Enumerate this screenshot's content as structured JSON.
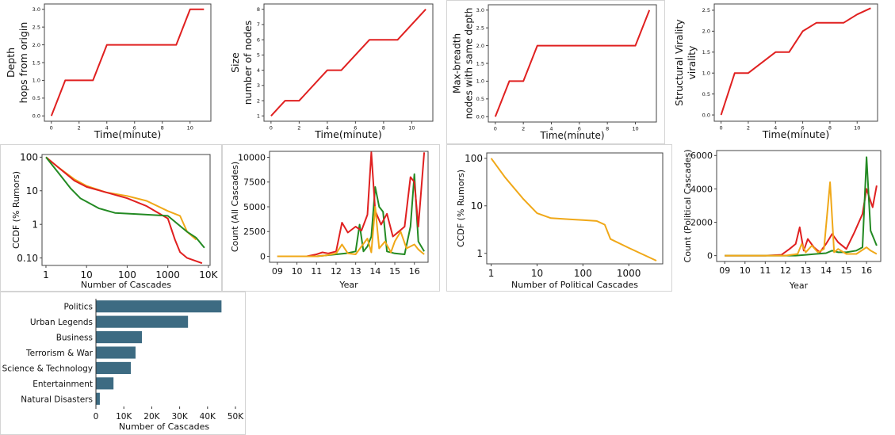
{
  "charts": [
    {
      "key": "depth",
      "type": "line",
      "ylabel_lines": [
        "Depth",
        "hops from origin"
      ],
      "xlabel": "Time(minute)",
      "xlim": [
        -0.5,
        11.5
      ],
      "ylim": [
        -0.15,
        3.15
      ],
      "xticks": [
        0,
        2,
        4,
        6,
        8,
        10
      ],
      "yticks": [
        0.0,
        0.5,
        1.0,
        1.5,
        2.0,
        2.5,
        3.0
      ],
      "ytick_labels": [
        "0.0",
        "0.5",
        "1.0",
        "1.5",
        "2.0",
        "2.5",
        "3.0"
      ],
      "series": [
        {
          "color": "#e02020",
          "x": [
            0,
            1,
            3,
            4,
            9,
            10,
            11
          ],
          "y": [
            0,
            1,
            1,
            2,
            2,
            3,
            3
          ]
        }
      ]
    },
    {
      "key": "size",
      "type": "line",
      "ylabel_lines": [
        "Size",
        "number of nodes"
      ],
      "xlabel": "Time(minute)",
      "xlim": [
        -0.5,
        11.5
      ],
      "ylim": [
        0.65,
        8.35
      ],
      "xticks": [
        0,
        2,
        4,
        6,
        8,
        10
      ],
      "yticks": [
        1,
        2,
        3,
        4,
        5,
        6,
        7,
        8
      ],
      "ytick_labels": [
        "1",
        "2",
        "3",
        "4",
        "5",
        "6",
        "7",
        "8"
      ],
      "series": [
        {
          "color": "#e02020",
          "x": [
            0,
            1,
            2,
            4,
            5,
            7,
            9,
            11
          ],
          "y": [
            1,
            2,
            2,
            4,
            4,
            6,
            6,
            8
          ]
        }
      ]
    },
    {
      "key": "breadth",
      "type": "line",
      "ylabel_lines": [
        "Max-breadth",
        "nodes with same depth"
      ],
      "xlabel": "Time(minute)",
      "xlim": [
        -0.5,
        11.5
      ],
      "ylim": [
        -0.15,
        3.15
      ],
      "xticks": [
        0,
        2,
        4,
        6,
        8,
        10
      ],
      "yticks": [
        0.0,
        0.5,
        1.0,
        1.5,
        2.0,
        2.5,
        3.0
      ],
      "ytick_labels": [
        "0.0",
        "0.5",
        "1.0",
        "1.5",
        "2.0",
        "2.5",
        "3.0"
      ],
      "series": [
        {
          "color": "#e02020",
          "x": [
            0,
            1,
            2,
            3,
            10,
            11
          ],
          "y": [
            0,
            1,
            1,
            2,
            2,
            3
          ]
        }
      ]
    },
    {
      "key": "virality",
      "type": "line",
      "ylabel_lines": [
        "Structural Virality",
        "virality"
      ],
      "xlabel": "Time(minute)",
      "xlim": [
        -0.5,
        11.5
      ],
      "ylim": [
        -0.15,
        2.65
      ],
      "xticks": [
        0,
        2,
        4,
        6,
        8,
        10
      ],
      "yticks": [
        0.0,
        0.5,
        1.0,
        1.5,
        2.0,
        2.5
      ],
      "ytick_labels": [
        "0.0",
        "0.5",
        "1.0",
        "1.5",
        "2.0",
        "2.5"
      ],
      "series": [
        {
          "color": "#e02020",
          "x": [
            0,
            1,
            2,
            4,
            5,
            6,
            7,
            9,
            10,
            11
          ],
          "y": [
            0,
            1,
            1,
            1.5,
            1.5,
            2,
            2.2,
            2.2,
            2.4,
            2.55
          ]
        }
      ]
    },
    {
      "key": "ccdf_rumors",
      "type": "line",
      "ylabel_lines": [
        "CCDF (% Rumors)"
      ],
      "xlabel": "Number of Cascades",
      "log_x": true,
      "log_y": true,
      "xlim": [
        0.8,
        11000
      ],
      "ylim": [
        0.06,
        120
      ],
      "xticks": [
        1,
        10,
        100,
        1000,
        10000
      ],
      "xtick_labels": [
        "1",
        "10",
        "100",
        "1000",
        "10K"
      ],
      "yticks": [
        0.1,
        1,
        10,
        100
      ],
      "ytick_labels": [
        "0.10",
        "1",
        "10",
        "100"
      ],
      "series": [
        {
          "color": "#f0a818",
          "x": [
            1,
            2,
            5,
            10,
            30,
            100,
            300,
            1000,
            2000,
            3000,
            5000
          ],
          "y": [
            100,
            50,
            22,
            14,
            9,
            7,
            5,
            2.5,
            1.8,
            0.6,
            0.35
          ]
        },
        {
          "color": "#e02020",
          "x": [
            1,
            2,
            5,
            10,
            30,
            100,
            300,
            1000,
            1500,
            2000,
            3000,
            7000
          ],
          "y": [
            100,
            50,
            20,
            13,
            9,
            6,
            3.5,
            1.5,
            0.35,
            0.15,
            0.1,
            0.07
          ]
        },
        {
          "color": "#238a23",
          "x": [
            1,
            2,
            4,
            7,
            20,
            50,
            200,
            1000,
            3000,
            5000,
            8000
          ],
          "y": [
            100,
            35,
            12,
            6,
            3,
            2.2,
            2,
            1.8,
            0.6,
            0.4,
            0.2
          ]
        }
      ]
    },
    {
      "key": "count_all",
      "type": "line",
      "ylabel_lines": [
        "Count (All Cascades)"
      ],
      "xlabel": "Year",
      "xlim": [
        8.6,
        16.7
      ],
      "ylim": [
        -600,
        10600
      ],
      "xticks": [
        9,
        10,
        11,
        12,
        13,
        14,
        15,
        16
      ],
      "xtick_labels": [
        "09",
        "10",
        "11",
        "12",
        "13",
        "14",
        "15",
        "16"
      ],
      "yticks": [
        0,
        2500,
        5000,
        7500,
        10000
      ],
      "ytick_labels": [
        "0",
        "2500",
        "5000",
        "7500",
        "10000"
      ],
      "series": [
        {
          "color": "#238a23",
          "x": [
            9,
            10,
            11,
            11.5,
            12,
            12.5,
            13,
            13.2,
            13.4,
            13.6,
            13.8,
            14,
            14.2,
            14.4,
            14.6,
            15,
            15.5,
            15.8,
            16,
            16.2,
            16.5
          ],
          "y": [
            0,
            0,
            0,
            100,
            200,
            300,
            500,
            3200,
            500,
            1000,
            2000,
            7000,
            5000,
            4500,
            500,
            300,
            200,
            3000,
            8300,
            1500,
            500
          ]
        },
        {
          "color": "#e02020",
          "x": [
            9,
            10,
            10.5,
            11,
            11.3,
            11.6,
            12,
            12.3,
            12.6,
            13,
            13.3,
            13.6,
            13.8,
            14,
            14.3,
            14.6,
            14.9,
            15.2,
            15.5,
            15.8,
            16,
            16.2,
            16.5
          ],
          "y": [
            0,
            0,
            0,
            200,
            400,
            300,
            500,
            3400,
            2400,
            3000,
            2600,
            4200,
            10500,
            4600,
            3200,
            4300,
            2000,
            2500,
            3000,
            8000,
            7500,
            3000,
            10500
          ]
        },
        {
          "color": "#f0a818",
          "x": [
            9,
            10,
            11,
            11.5,
            12,
            12.3,
            12.6,
            13,
            13.3,
            13.6,
            13.8,
            14,
            14.2,
            14.5,
            14.8,
            15,
            15.3,
            15.6,
            16,
            16.2,
            16.5
          ],
          "y": [
            0,
            0,
            0,
            100,
            300,
            1200,
            300,
            200,
            1000,
            1800,
            400,
            5000,
            800,
            1500,
            400,
            1500,
            2500,
            800,
            1200,
            700,
            200
          ]
        }
      ]
    },
    {
      "key": "ccdf_political",
      "type": "line",
      "ylabel_lines": [
        "CCDF (% Rumors)"
      ],
      "xlabel": "Number of Political Cascades",
      "log_x": true,
      "log_y": true,
      "xlim": [
        0.8,
        5500
      ],
      "ylim": [
        0.6,
        130
      ],
      "xticks": [
        1,
        10,
        100,
        1000
      ],
      "xtick_labels": [
        "1",
        "10",
        "100",
        "1000"
      ],
      "yticks": [
        1,
        10,
        100
      ],
      "ytick_labels": [
        "1",
        "10",
        "100"
      ],
      "series": [
        {
          "color": "#f0a818",
          "x": [
            1,
            2,
            5,
            10,
            20,
            50,
            100,
            200,
            300,
            400,
            1000,
            4000
          ],
          "y": [
            100,
            40,
            14,
            7,
            5.5,
            5.2,
            5,
            4.8,
            4,
            2,
            1.3,
            0.7
          ]
        }
      ]
    },
    {
      "key": "count_political",
      "type": "line",
      "ylabel_lines": [
        "Count (Political Cascades)"
      ],
      "xlabel": "Year",
      "xlim": [
        8.6,
        16.7
      ],
      "ylim": [
        -350,
        6300
      ],
      "xticks": [
        9,
        10,
        11,
        12,
        13,
        14,
        15,
        16
      ],
      "xtick_labels": [
        "09",
        "10",
        "11",
        "12",
        "13",
        "14",
        "15",
        "16"
      ],
      "yticks": [
        0,
        2000,
        4000,
        6000
      ],
      "ytick_labels": [
        "0",
        "2000",
        "4000",
        "6000"
      ],
      "series": [
        {
          "color": "#e02020",
          "x": [
            9,
            10,
            11,
            11.8,
            12.2,
            12.5,
            12.7,
            12.9,
            13.1,
            13.4,
            13.7,
            14,
            14.3,
            14.6,
            15,
            15.4,
            15.8,
            16,
            16.3,
            16.5
          ],
          "y": [
            0,
            0,
            0,
            50,
            400,
            700,
            1700,
            300,
            1000,
            500,
            200,
            700,
            1300,
            800,
            400,
            1400,
            2500,
            4000,
            2900,
            4200
          ]
        },
        {
          "color": "#238a23",
          "x": [
            9,
            10,
            11,
            12,
            12.5,
            13,
            13.5,
            14,
            14.3,
            14.6,
            15,
            15.5,
            15.8,
            16,
            16.2,
            16.5
          ],
          "y": [
            0,
            0,
            0,
            0,
            0,
            50,
            100,
            150,
            300,
            200,
            200,
            300,
            500,
            5900,
            1500,
            600
          ]
        },
        {
          "color": "#f0a818",
          "x": [
            9,
            10,
            11,
            12,
            12.6,
            12.8,
            13,
            13.3,
            13.6,
            13.9,
            14.2,
            14.4,
            14.6,
            15,
            15.5,
            16,
            16.2,
            16.5
          ],
          "y": [
            0,
            0,
            0,
            0,
            100,
            700,
            200,
            600,
            200,
            400,
            4400,
            200,
            400,
            100,
            100,
            500,
            300,
            100
          ]
        }
      ]
    },
    {
      "key": "topics",
      "type": "bar",
      "xlabel": "Number of Cascades",
      "xlim": [
        0,
        50000
      ],
      "xticks": [
        0,
        10000,
        20000,
        30000,
        40000,
        50000
      ],
      "xtick_labels": [
        "0",
        "10K",
        "20K",
        "30K",
        "40K",
        "50K"
      ],
      "bar_color": "#3d6b82",
      "categories": [
        "Politics",
        "Urban Legends",
        "Business",
        "Terrorism & War",
        "Science & Technology",
        "Entertainment",
        "Natural Disasters"
      ],
      "values": [
        45000,
        33000,
        16500,
        14200,
        12500,
        6300,
        1400
      ]
    }
  ]
}
